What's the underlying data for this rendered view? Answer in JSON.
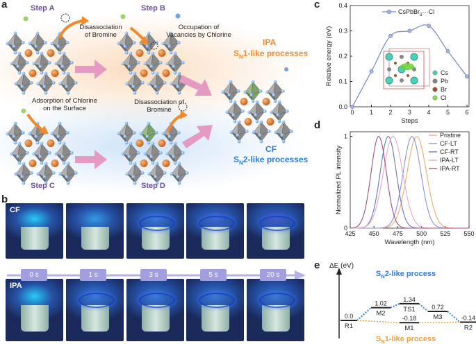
{
  "panels": {
    "a": "a",
    "b": "b",
    "c": "c",
    "d": "d",
    "e": "e"
  },
  "panel_a": {
    "step_a": "Step A",
    "step_b": "Step B",
    "step_c": "Step C",
    "step_d": "Step D",
    "note_a": [
      "Disassociation",
      "of Bromine"
    ],
    "note_b": [
      "Occupation of",
      "Vacancies by Chlorine"
    ],
    "note_c": [
      "Adsorption of Chlorine",
      "on the Surface"
    ],
    "note_d": [
      "Disassociation of",
      "Bromine"
    ],
    "ipa_title": "IPA",
    "ipa_proc": [
      "S",
      "N",
      "1-like processes"
    ],
    "cf_title": "CF",
    "cf_proc": [
      "S",
      "N",
      "2-like processes"
    ]
  },
  "panel_b": {
    "row1_label": "CF",
    "row2_label": "IPA",
    "times": [
      "0 s",
      "1 s",
      "3 s",
      "5 s",
      "20 s"
    ],
    "colors": {
      "timeline": "#b6b2e6",
      "tag_bg": "#a29fe0",
      "tag_text": "#ffffff"
    }
  },
  "panel_e": {
    "ylabel": "ΔE (eV)",
    "sn2": [
      "S",
      "N",
      "2-like process"
    ],
    "sn1": [
      "S",
      "N",
      "1-like process"
    ],
    "states": [
      {
        "name": "R1",
        "value": "0.0"
      },
      {
        "name": "M2",
        "value": "1.02"
      },
      {
        "name": "TS1",
        "value": "1.34"
      },
      {
        "name": "M3",
        "value": "0.72"
      },
      {
        "name": "R2",
        "value": "-0.14"
      },
      {
        "name": "M1",
        "value": "-0.18"
      }
    ],
    "colors": {
      "sn2": "#2a7de1",
      "sn1": "#f0a040"
    }
  },
  "chart_data": [
    {
      "id": "c",
      "type": "line",
      "legend": [
        "CsPbBr",
        "3",
        "···Cl"
      ],
      "x": [
        0,
        1,
        2,
        3,
        4,
        5,
        6
      ],
      "y": [
        0.0,
        0.14,
        0.28,
        0.3,
        0.32,
        0.22,
        0.12
      ],
      "ylabel": "Relative energy (eV)",
      "xlabel": "Steps",
      "xlim": [
        0,
        6
      ],
      "ylim": [
        0.0,
        0.4
      ],
      "xticks": [
        "0",
        "1",
        "2",
        "3",
        "4",
        "5",
        "6"
      ],
      "yticks": [
        "0.0",
        "0.1",
        "0.2",
        "0.3",
        "0.4"
      ],
      "inset_legend": [
        "Cs",
        "Pb",
        "Br",
        "Cl"
      ],
      "colors": {
        "line": "#7d8bc4",
        "marker": "#a9b4e0"
      }
    },
    {
      "id": "d",
      "type": "line",
      "xlabel": "Wavelength (nm)",
      "ylabel": "Normalized PL intensity",
      "xlim": [
        425,
        550
      ],
      "ylim": [
        0,
        1.05
      ],
      "xticks": [
        "425",
        "450",
        "475",
        "500",
        "525",
        "550"
      ],
      "yticks": [
        "0",
        "1"
      ],
      "series": [
        {
          "name": "Pristine",
          "peak": 495,
          "fwhm": 24,
          "color": "#f3a868"
        },
        {
          "name": "CF-LT",
          "peak": 490,
          "fwhm": 22,
          "color": "#8a8ed0"
        },
        {
          "name": "CF-RT",
          "peak": 465,
          "fwhm": 20,
          "color": "#6c73b8"
        },
        {
          "name": "IPA-LT",
          "peak": 470,
          "fwhm": 24,
          "color": "#e9a6c4"
        },
        {
          "name": "IPA-RT",
          "peak": 455,
          "fwhm": 19,
          "color": "#a24e7c"
        }
      ]
    }
  ]
}
